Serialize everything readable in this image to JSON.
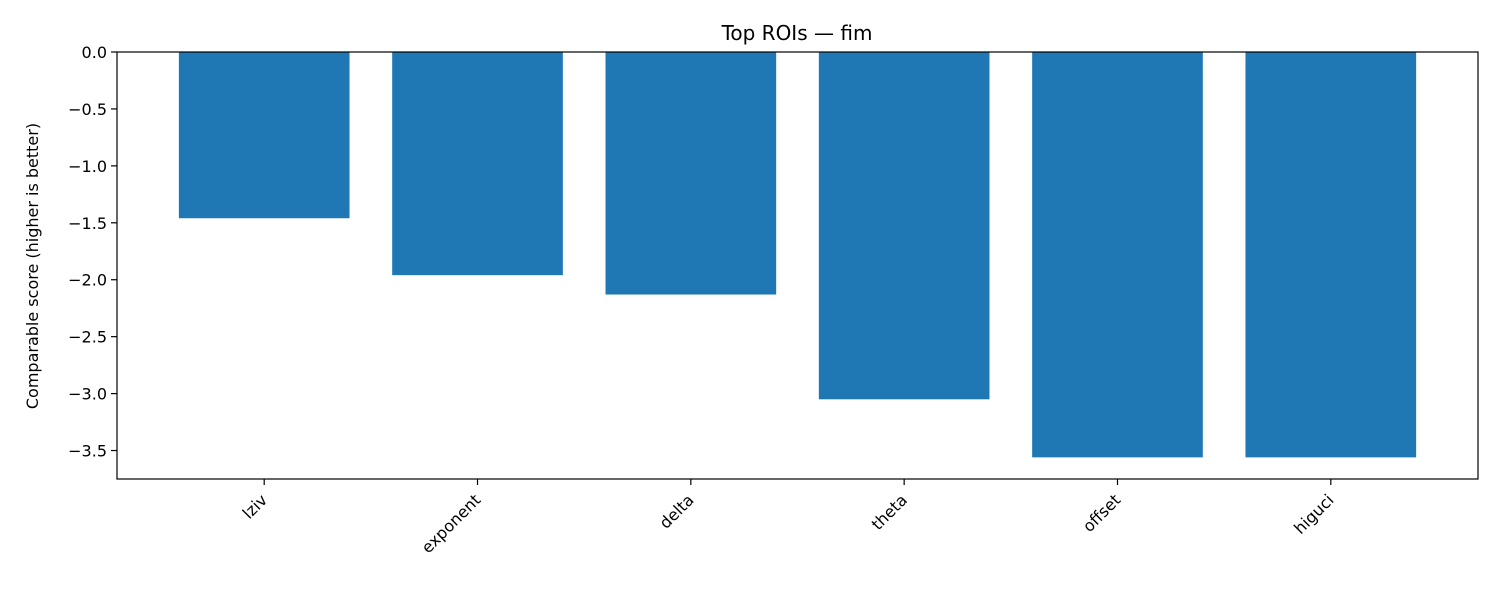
{
  "chart_data": {
    "type": "bar",
    "title": "Top ROIs — fim",
    "xlabel": "",
    "ylabel": "Comparable score (higher is better)",
    "categories": [
      "lziv",
      "exponent",
      "delta",
      "theta",
      "offset",
      "higuci"
    ],
    "values": [
      -1.46,
      -1.96,
      -2.13,
      -3.05,
      -3.56,
      -3.56
    ],
    "ylim": [
      -3.75,
      0.0
    ],
    "yticks": [
      0.0,
      -0.5,
      -1.0,
      -1.5,
      -2.0,
      -2.5,
      -3.0,
      -3.5
    ],
    "ytick_labels": [
      "0.0",
      "−0.5",
      "−1.0",
      "−1.5",
      "−2.0",
      "−2.5",
      "−3.0",
      "−3.5"
    ],
    "bar_color": "#1f77b4",
    "grid": false,
    "legend": "none"
  }
}
